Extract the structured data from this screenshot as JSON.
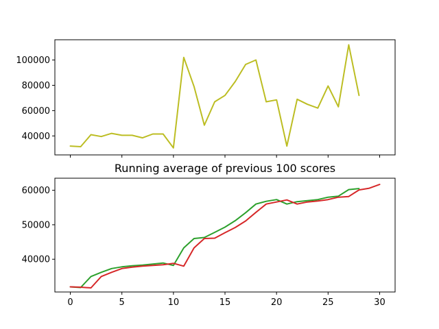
{
  "chart_data": [
    {
      "type": "line",
      "title": "",
      "xlabel": "",
      "ylabel": "",
      "xlim": [
        -1.5,
        31.5
      ],
      "ylim": [
        25000,
        116000
      ],
      "grid": false,
      "x_ticks": [
        0,
        5,
        10,
        15,
        20,
        25,
        30
      ],
      "x_tick_labels_visible": false,
      "y_ticks": [
        40000,
        60000,
        80000,
        100000
      ],
      "y_tick_labels": [
        "40000",
        "60000",
        "80000",
        "100000"
      ],
      "series": [
        {
          "color": "#bcbd22",
          "x": [
            0,
            1,
            2,
            3,
            4,
            5,
            6,
            7,
            8,
            9,
            10,
            11,
            12,
            13,
            14,
            15,
            16,
            17,
            18,
            19,
            20,
            21,
            22,
            23,
            24,
            25,
            26,
            27,
            28
          ],
          "values": [
            32000,
            31500,
            41000,
            39500,
            42000,
            40500,
            40500,
            38500,
            41500,
            41500,
            30500,
            102000,
            79000,
            48500,
            67000,
            72000,
            83000,
            96500,
            100000,
            67000,
            68500,
            32000,
            69000,
            65000,
            62000,
            79500,
            63000,
            112000,
            72000
          ]
        }
      ]
    },
    {
      "type": "line",
      "title": "Running average of previous 100 scores",
      "xlabel": "",
      "ylabel": "",
      "xlim": [
        -1.5,
        31.5
      ],
      "ylim": [
        30500,
        63500
      ],
      "grid": false,
      "x_ticks": [
        0,
        5,
        10,
        15,
        20,
        25,
        30
      ],
      "x_tick_labels": [
        "0",
        "5",
        "10",
        "15",
        "20",
        "25",
        "30"
      ],
      "y_ticks": [
        40000,
        50000,
        60000
      ],
      "y_tick_labels": [
        "40000",
        "50000",
        "60000"
      ],
      "series": [
        {
          "color": "#2ca02c",
          "x": [
            0,
            1,
            2,
            3,
            4,
            5,
            6,
            7,
            8,
            9,
            10,
            11,
            12,
            13,
            14,
            15,
            16,
            17,
            18,
            19,
            20,
            21,
            22,
            23,
            24,
            25,
            26,
            27,
            28
          ],
          "values": [
            32000,
            31800,
            35000,
            36200,
            37300,
            37800,
            38100,
            38300,
            38600,
            38900,
            38200,
            43300,
            46000,
            46300,
            47800,
            49300,
            51200,
            53500,
            56000,
            56800,
            57300,
            56000,
            56700,
            57000,
            57300,
            58000,
            58300,
            60200,
            60500
          ]
        },
        {
          "color": "#d62728",
          "x": [
            0,
            1,
            2,
            3,
            4,
            5,
            6,
            7,
            8,
            9,
            10,
            11,
            12,
            13,
            14,
            15,
            16,
            17,
            18,
            19,
            20,
            21,
            22,
            23,
            24,
            25,
            26,
            27,
            28,
            29,
            30
          ],
          "values": [
            32000,
            31900,
            31700,
            35000,
            36200,
            37300,
            37700,
            38000,
            38200,
            38400,
            38800,
            38000,
            43300,
            46000,
            46100,
            47700,
            49200,
            51100,
            53600,
            56000,
            56600,
            57200,
            56000,
            56600,
            56900,
            57300,
            58000,
            58200,
            60100,
            60600,
            61700
          ]
        }
      ]
    }
  ]
}
